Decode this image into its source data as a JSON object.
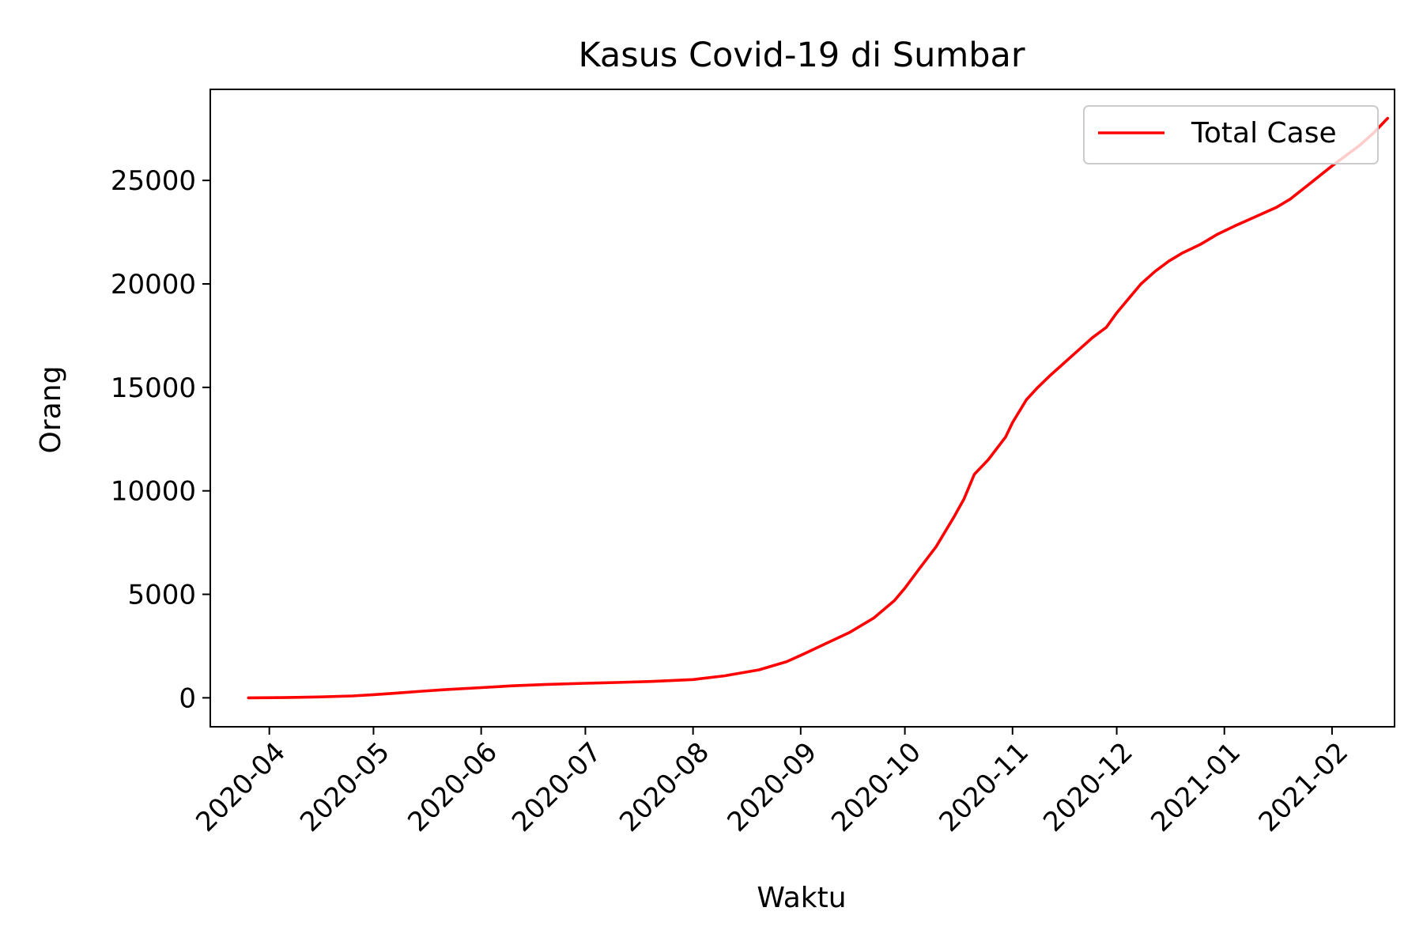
{
  "chart_data": {
    "type": "line",
    "title": "Kasus Covid-19 di Sumbar",
    "xlabel": "Waktu",
    "ylabel": "Orang",
    "x_scale": "date",
    "xlim": [
      "2020-03-15",
      "2021-02-19"
    ],
    "ylim": [
      -1400,
      29400
    ],
    "grid": false,
    "legend_position": "top-right",
    "x_ticks": [
      "2020-04",
      "2020-05",
      "2020-06",
      "2020-07",
      "2020-08",
      "2020-09",
      "2020-10",
      "2020-11",
      "2020-12",
      "2021-01",
      "2021-02"
    ],
    "x_tick_dates": [
      "2020-04-01",
      "2020-05-01",
      "2020-06-01",
      "2020-07-01",
      "2020-08-01",
      "2020-09-01",
      "2020-10-01",
      "2020-11-01",
      "2020-12-01",
      "2021-01-01",
      "2021-02-01"
    ],
    "y_ticks": [
      0,
      5000,
      10000,
      15000,
      20000,
      25000
    ],
    "series": [
      {
        "name": "Total Case",
        "color": "#ff0000",
        "points": [
          [
            "2020-03-26",
            0
          ],
          [
            "2020-04-05",
            10
          ],
          [
            "2020-04-15",
            40
          ],
          [
            "2020-04-25",
            90
          ],
          [
            "2020-05-01",
            150
          ],
          [
            "2020-05-08",
            230
          ],
          [
            "2020-05-15",
            320
          ],
          [
            "2020-05-22",
            400
          ],
          [
            "2020-06-01",
            490
          ],
          [
            "2020-06-10",
            580
          ],
          [
            "2020-06-20",
            650
          ],
          [
            "2020-07-01",
            700
          ],
          [
            "2020-07-10",
            740
          ],
          [
            "2020-07-20",
            790
          ],
          [
            "2020-08-01",
            880
          ],
          [
            "2020-08-10",
            1060
          ],
          [
            "2020-08-20",
            1350
          ],
          [
            "2020-08-28",
            1750
          ],
          [
            "2020-09-01",
            2050
          ],
          [
            "2020-09-08",
            2600
          ],
          [
            "2020-09-15",
            3150
          ],
          [
            "2020-09-22",
            3850
          ],
          [
            "2020-09-28",
            4700
          ],
          [
            "2020-10-01",
            5300
          ],
          [
            "2020-10-05",
            6200
          ],
          [
            "2020-10-10",
            7300
          ],
          [
            "2020-10-15",
            8700
          ],
          [
            "2020-10-18",
            9600
          ],
          [
            "2020-10-21",
            10800
          ],
          [
            "2020-10-25",
            11500
          ],
          [
            "2020-10-30",
            12600
          ],
          [
            "2020-11-01",
            13300
          ],
          [
            "2020-11-05",
            14400
          ],
          [
            "2020-11-08",
            14950
          ],
          [
            "2020-11-12",
            15600
          ],
          [
            "2020-11-16",
            16200
          ],
          [
            "2020-11-20",
            16800
          ],
          [
            "2020-11-24",
            17400
          ],
          [
            "2020-11-28",
            17900
          ],
          [
            "2020-12-01",
            18600
          ],
          [
            "2020-12-05",
            19400
          ],
          [
            "2020-12-08",
            20000
          ],
          [
            "2020-12-12",
            20600
          ],
          [
            "2020-12-16",
            21100
          ],
          [
            "2020-12-20",
            21500
          ],
          [
            "2020-12-25",
            21900
          ],
          [
            "2020-12-30",
            22400
          ],
          [
            "2021-01-04",
            22800
          ],
          [
            "2021-01-08",
            23100
          ],
          [
            "2021-01-12",
            23400
          ],
          [
            "2021-01-16",
            23700
          ],
          [
            "2021-01-20",
            24100
          ],
          [
            "2021-01-23",
            24500
          ],
          [
            "2021-01-26",
            24900
          ],
          [
            "2021-01-29",
            25300
          ],
          [
            "2021-02-01",
            25700
          ],
          [
            "2021-02-05",
            26200
          ],
          [
            "2021-02-09",
            26700
          ],
          [
            "2021-02-13",
            27300
          ],
          [
            "2021-02-17",
            28000
          ]
        ]
      }
    ]
  }
}
